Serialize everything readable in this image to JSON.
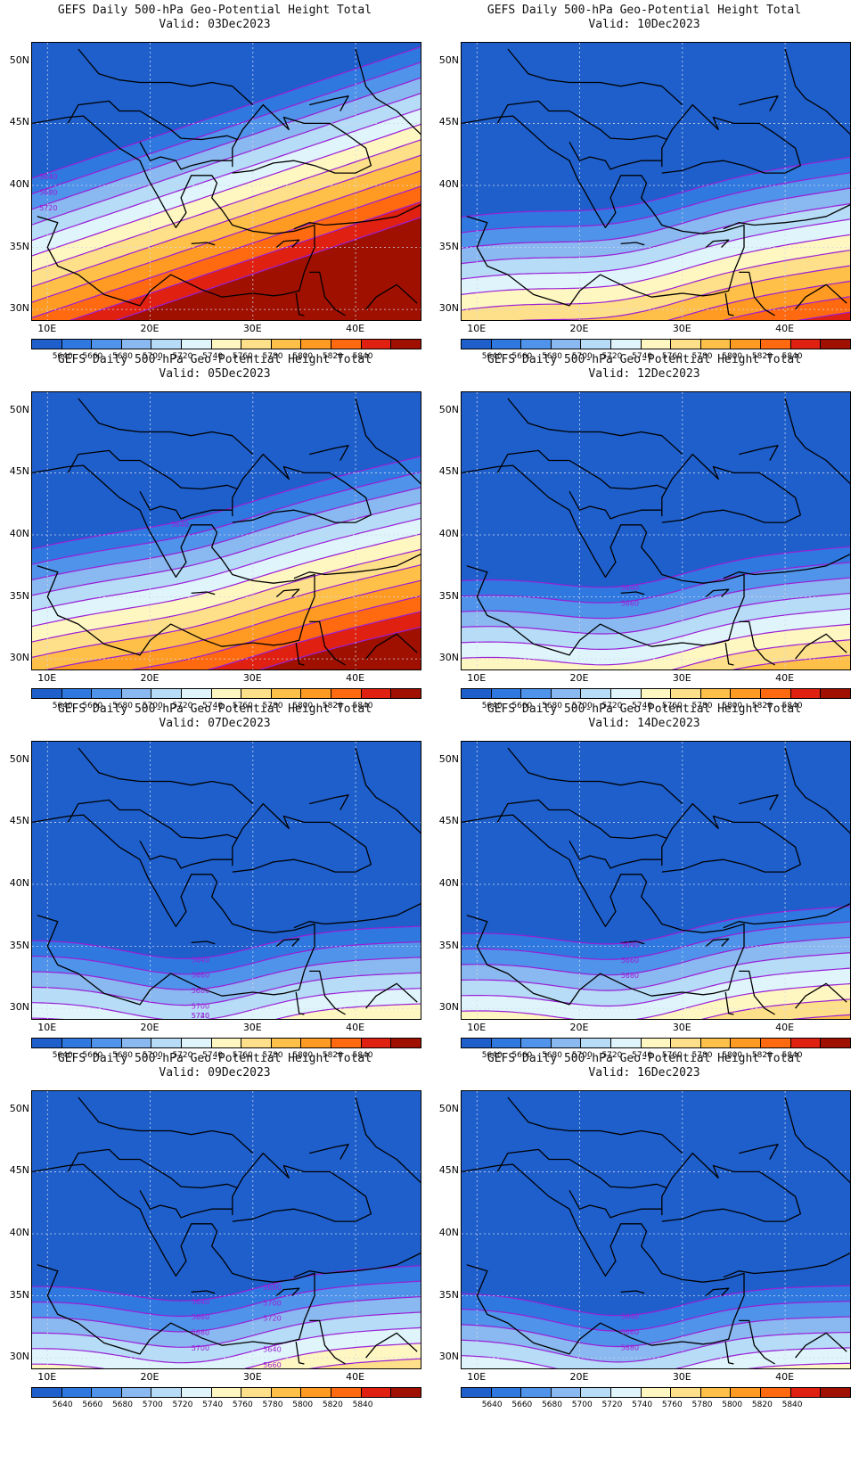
{
  "panels": [
    {
      "title": "GEFS Daily 500-hPa Geo-Potential Height Total",
      "valid": "Valid: 03Dec2023",
      "ridge": 0.0,
      "labels": [
        {
          "text": "5640"
        },
        {
          "text": "5680"
        },
        {
          "text": "5720"
        }
      ]
    },
    {
      "title": "GEFS Daily 500-hPa Geo-Potential Height Total",
      "valid": "Valid: 10Dec2023",
      "ridge": 0.55,
      "labels": []
    },
    {
      "title": "GEFS Daily 500-hPa Geo-Potential Height Total",
      "valid": "Valid: 05Dec2023",
      "ridge": 0.3,
      "labels": [
        {
          "text": "5640"
        }
      ]
    },
    {
      "title": "GEFS Daily 500-hPa Geo-Potential Height Total",
      "valid": "Valid: 12Dec2023",
      "ridge": 0.75,
      "labels": [
        {
          "text": "5640"
        },
        {
          "text": "5660"
        }
      ]
    },
    {
      "title": "GEFS Daily 500-hPa Geo-Potential Height Total",
      "valid": "Valid: 07Dec2023",
      "ridge": 0.9,
      "labels": [
        {
          "text": "5640"
        },
        {
          "text": "5660"
        },
        {
          "text": "5680"
        },
        {
          "text": "5700"
        },
        {
          "text": "5720"
        },
        {
          "text": "5740"
        }
      ]
    },
    {
      "title": "GEFS Daily 500-hPa Geo-Potential Height Total",
      "valid": "Valid: 14Dec2023",
      "ridge": 0.8,
      "labels": [
        {
          "text": "5640"
        },
        {
          "text": "5660"
        },
        {
          "text": "5680"
        }
      ]
    },
    {
      "title": "GEFS Daily 500-hPa Geo-Potential Height Total",
      "valid": "Valid: 09Dec2023",
      "ridge": 0.85,
      "labels": [
        {
          "text": "5640"
        },
        {
          "text": "5660"
        },
        {
          "text": "5680"
        },
        {
          "text": "5700"
        },
        {
          "text": "5640"
        },
        {
          "text": "5660"
        },
        {
          "text": "5680"
        },
        {
          "text": "5700"
        },
        {
          "text": "5720"
        }
      ]
    },
    {
      "title": "GEFS Daily 500-hPa Geo-Potential Height Total",
      "valid": "Valid: 16Dec2023",
      "ridge": 0.95,
      "labels": [
        {
          "text": "5640"
        },
        {
          "text": "5660"
        },
        {
          "text": "5680"
        }
      ]
    }
  ],
  "axes": {
    "lat_labels": [
      "50N",
      "45N",
      "40N",
      "35N",
      "30N"
    ],
    "lon_labels": [
      "10E",
      "20E",
      "30E",
      "40E"
    ]
  },
  "colorbar": {
    "labels": [
      "5640",
      "5660",
      "5680",
      "5700",
      "5720",
      "5740",
      "5760",
      "5780",
      "5800",
      "5820",
      "5840"
    ],
    "colors": [
      "#1e5fcc",
      "#2f78e0",
      "#4f93ea",
      "#8ab8f0",
      "#b6dcf7",
      "#dff5fb",
      "#fff7c2",
      "#ffe08a",
      "#ffc04a",
      "#ff9a22",
      "#ff6a10",
      "#e02010",
      "#a01000"
    ]
  },
  "contour_color": "#9a1fd6"
}
